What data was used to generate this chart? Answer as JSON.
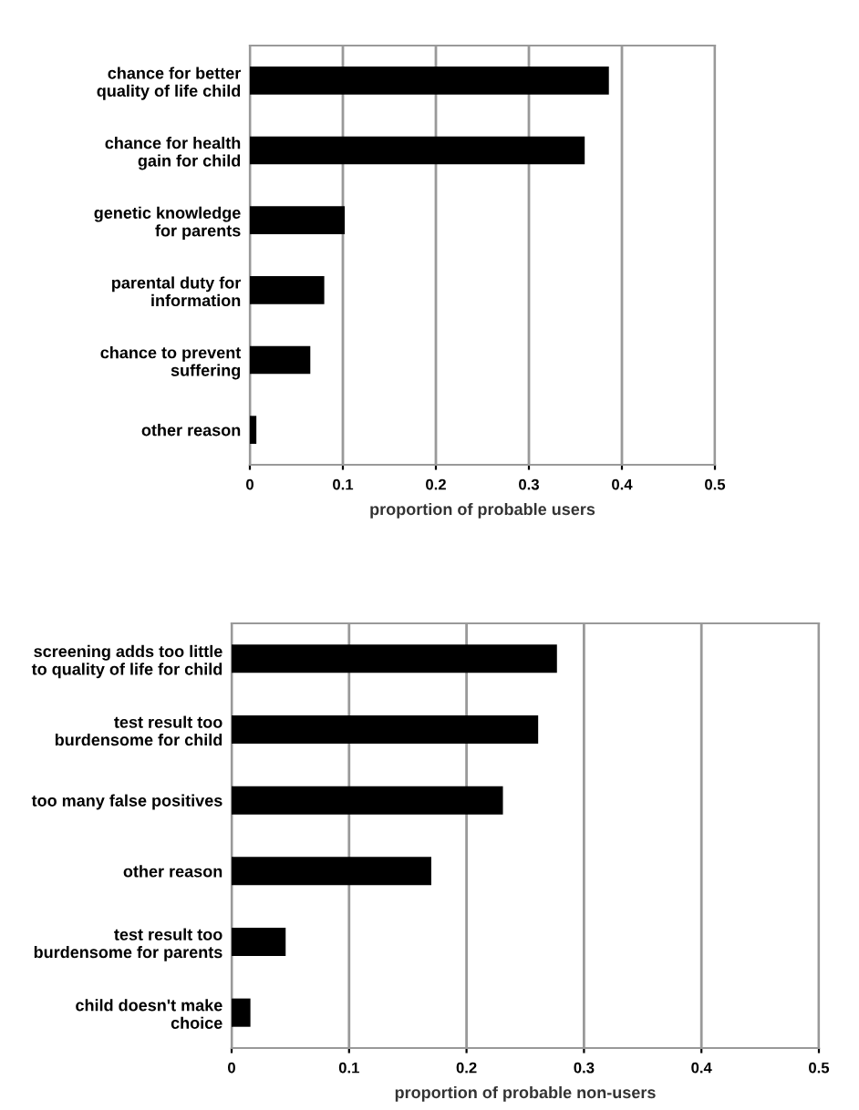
{
  "chart_data": [
    {
      "type": "bar",
      "orientation": "horizontal",
      "categories": [
        "chance for better\nquality of life child",
        "chance for health\ngain for child",
        "genetic knowledge\nfor parents",
        "parental duty for\ninformation",
        "chance to prevent\nsuffering",
        "other reason"
      ],
      "values": [
        0.386,
        0.36,
        0.102,
        0.08,
        0.065,
        0.007
      ],
      "color": "#000000",
      "xlabel": "proportion of probable users",
      "xlim": [
        0,
        0.5
      ],
      "xticks": [
        0,
        0.1,
        0.2,
        0.3,
        0.4,
        0.5
      ],
      "grid": "x"
    },
    {
      "type": "bar",
      "orientation": "horizontal",
      "categories": [
        "screening adds too little\nto quality of life for child",
        "test result too\nburdensome for child",
        "too many false positives",
        "other reason",
        "test result too\nburdensome for parents",
        "child doesn't make\nchoice"
      ],
      "values": [
        0.277,
        0.261,
        0.231,
        0.17,
        0.046,
        0.016
      ],
      "color": "#000000",
      "xlabel": "proportion of probable non-users",
      "xlim": [
        0,
        0.5
      ],
      "xticks": [
        0,
        0.1,
        0.2,
        0.3,
        0.4,
        0.5
      ],
      "grid": "x"
    }
  ]
}
